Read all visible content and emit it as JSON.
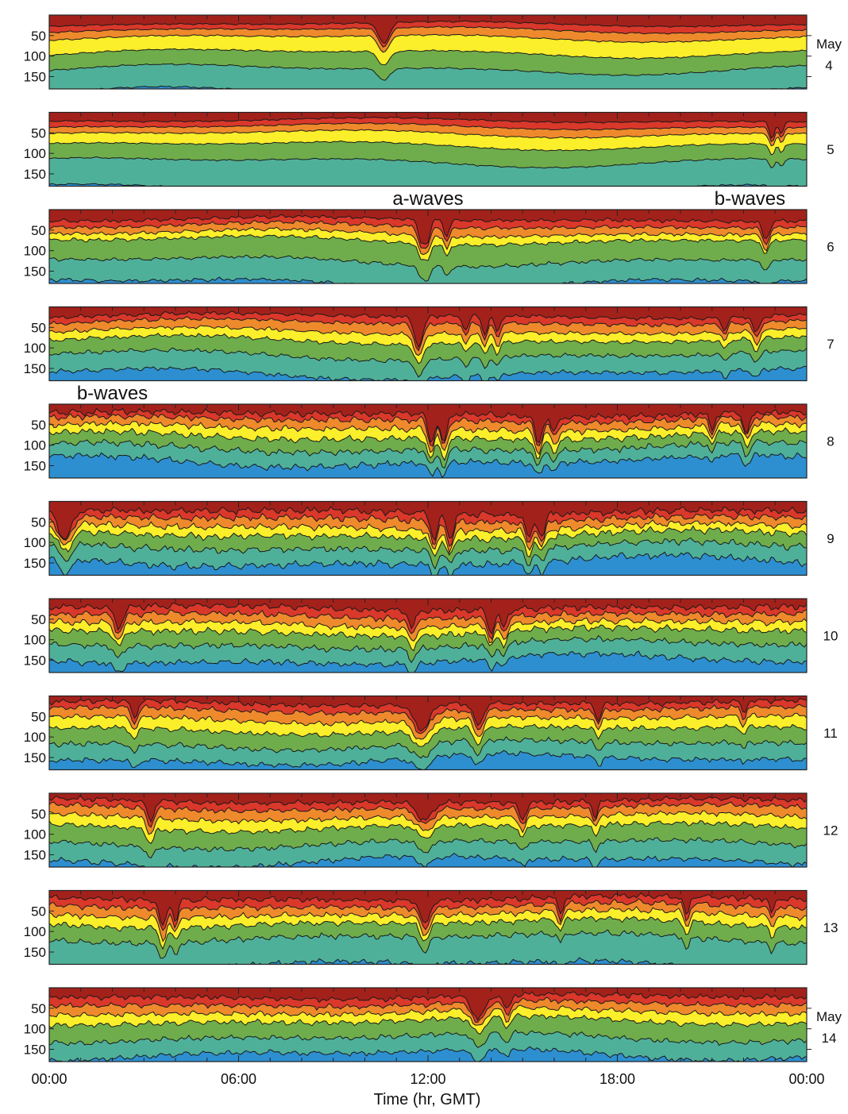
{
  "chart_data": {
    "type": "area",
    "panel_count": 11,
    "xlabel": "Time (hr, GMT)",
    "x_range_hours": [
      0,
      24
    ],
    "x_ticks": [
      "00:00",
      "06:00",
      "12:00",
      "18:00",
      "00:00"
    ],
    "y_range": [
      0,
      180
    ],
    "y_inverted": true,
    "y_ticks": [
      50,
      100,
      150
    ],
    "y_tick_labels": [
      "50",
      "100",
      "150"
    ],
    "month_label": "May",
    "band_colors": [
      "#a3211b",
      "#d9382a",
      "#ee8a2c",
      "#fbee2a",
      "#6fad4c",
      "#4fb09a",
      "#2d8fd0"
    ],
    "panels": [
      {
        "day": "4",
        "month_label_shown": true,
        "base": [
          22,
          36,
          55,
          92,
          132,
          190
        ],
        "ripple": 0.15,
        "dips": [
          {
            "t": 10.6,
            "depth": 50,
            "w": 0.25
          }
        ]
      },
      {
        "day": "5",
        "month_label_shown": false,
        "base": [
          20,
          35,
          52,
          80,
          120,
          188
        ],
        "ripple": 0.15,
        "dips": [
          {
            "t": 22.9,
            "depth": 40,
            "w": 0.12
          },
          {
            "t": 23.2,
            "depth": 30,
            "w": 0.1
          }
        ]
      },
      {
        "day": "6",
        "month_label_shown": false,
        "base": [
          24,
          40,
          58,
          75,
          125,
          178
        ],
        "ripple": 0.35,
        "dips": [
          {
            "t": 11.8,
            "depth": 55,
            "w": 0.15
          },
          {
            "t": 12.0,
            "depth": 45,
            "w": 0.12
          },
          {
            "t": 12.6,
            "depth": 40,
            "w": 0.12
          },
          {
            "t": 22.7,
            "depth": 45,
            "w": 0.15
          }
        ]
      },
      {
        "day": "7",
        "month_label_shown": false,
        "base": [
          22,
          38,
          60,
          82,
          118,
          162
        ],
        "ripple": 0.4,
        "dips": [
          {
            "t": 11.7,
            "depth": 70,
            "w": 0.2
          },
          {
            "t": 13.2,
            "depth": 35,
            "w": 0.12
          },
          {
            "t": 13.8,
            "depth": 45,
            "w": 0.12
          },
          {
            "t": 14.2,
            "depth": 40,
            "w": 0.12
          },
          {
            "t": 21.4,
            "depth": 30,
            "w": 0.12
          },
          {
            "t": 22.4,
            "depth": 40,
            "w": 0.15
          }
        ]
      },
      {
        "day": "8",
        "month_label_shown": false,
        "base": [
          24,
          38,
          58,
          80,
          108,
          140
        ],
        "ripple": 0.6,
        "dips": [
          {
            "t": 12.1,
            "depth": 70,
            "w": 0.15
          },
          {
            "t": 12.5,
            "depth": 70,
            "w": 0.15
          },
          {
            "t": 15.5,
            "depth": 65,
            "w": 0.15
          },
          {
            "t": 16.0,
            "depth": 40,
            "w": 0.15
          },
          {
            "t": 21.0,
            "depth": 40,
            "w": 0.12
          },
          {
            "t": 22.1,
            "depth": 50,
            "w": 0.15
          }
        ]
      },
      {
        "day": "9",
        "month_label_shown": false,
        "base": [
          25,
          42,
          62,
          82,
          112,
          148
        ],
        "ripple": 0.65,
        "dips": [
          {
            "t": 0.5,
            "depth": 70,
            "w": 0.3
          },
          {
            "t": 12.2,
            "depth": 65,
            "w": 0.15
          },
          {
            "t": 12.7,
            "depth": 60,
            "w": 0.15
          },
          {
            "t": 15.2,
            "depth": 60,
            "w": 0.15
          },
          {
            "t": 15.6,
            "depth": 55,
            "w": 0.15
          }
        ]
      },
      {
        "day": "10",
        "month_label_shown": false,
        "base": [
          22,
          40,
          60,
          80,
          112,
          150
        ],
        "ripple": 0.6,
        "dips": [
          {
            "t": 2.2,
            "depth": 50,
            "w": 0.2
          },
          {
            "t": 11.5,
            "depth": 45,
            "w": 0.15
          },
          {
            "t": 14.0,
            "depth": 55,
            "w": 0.15
          },
          {
            "t": 14.4,
            "depth": 45,
            "w": 0.15
          }
        ]
      },
      {
        "day": "11",
        "month_label_shown": false,
        "base": [
          18,
          34,
          56,
          82,
          118,
          155
        ],
        "ripple": 0.5,
        "dips": [
          {
            "t": 2.7,
            "depth": 40,
            "w": 0.15
          },
          {
            "t": 11.8,
            "depth": 60,
            "w": 0.35
          },
          {
            "t": 13.6,
            "depth": 55,
            "w": 0.2
          },
          {
            "t": 17.4,
            "depth": 40,
            "w": 0.12
          },
          {
            "t": 22.0,
            "depth": 30,
            "w": 0.1
          }
        ]
      },
      {
        "day": "12",
        "month_label_shown": false,
        "base": [
          20,
          36,
          58,
          82,
          122,
          165
        ],
        "ripple": 0.5,
        "dips": [
          {
            "t": 3.2,
            "depth": 50,
            "w": 0.15
          },
          {
            "t": 11.9,
            "depth": 45,
            "w": 0.35
          },
          {
            "t": 15.0,
            "depth": 40,
            "w": 0.15
          },
          {
            "t": 17.3,
            "depth": 40,
            "w": 0.12
          }
        ]
      },
      {
        "day": "13",
        "month_label_shown": false,
        "base": [
          20,
          38,
          58,
          80,
          115,
          182
        ],
        "ripple": 0.55,
        "dips": [
          {
            "t": 3.6,
            "depth": 65,
            "w": 0.15
          },
          {
            "t": 4.0,
            "depth": 50,
            "w": 0.12
          },
          {
            "t": 11.9,
            "depth": 60,
            "w": 0.2
          },
          {
            "t": 16.2,
            "depth": 40,
            "w": 0.12
          },
          {
            "t": 20.2,
            "depth": 45,
            "w": 0.12
          },
          {
            "t": 22.9,
            "depth": 35,
            "w": 0.1
          }
        ]
      },
      {
        "day": "14",
        "month_label_shown": true,
        "base": [
          22,
          40,
          60,
          82,
          122,
          162
        ],
        "ripple": 0.5,
        "dips": [
          {
            "t": 13.6,
            "depth": 55,
            "w": 0.3
          },
          {
            "t": 14.5,
            "depth": 40,
            "w": 0.15
          }
        ]
      }
    ],
    "annotations": [
      {
        "text": "a-waves",
        "panel_day": "6",
        "t": 12.0,
        "placement": "above"
      },
      {
        "text": "b-waves",
        "panel_day": "6",
        "t": 22.2,
        "placement": "above"
      },
      {
        "text": "b-waves",
        "panel_day": "8",
        "t": 2.0,
        "placement": "above"
      }
    ]
  }
}
